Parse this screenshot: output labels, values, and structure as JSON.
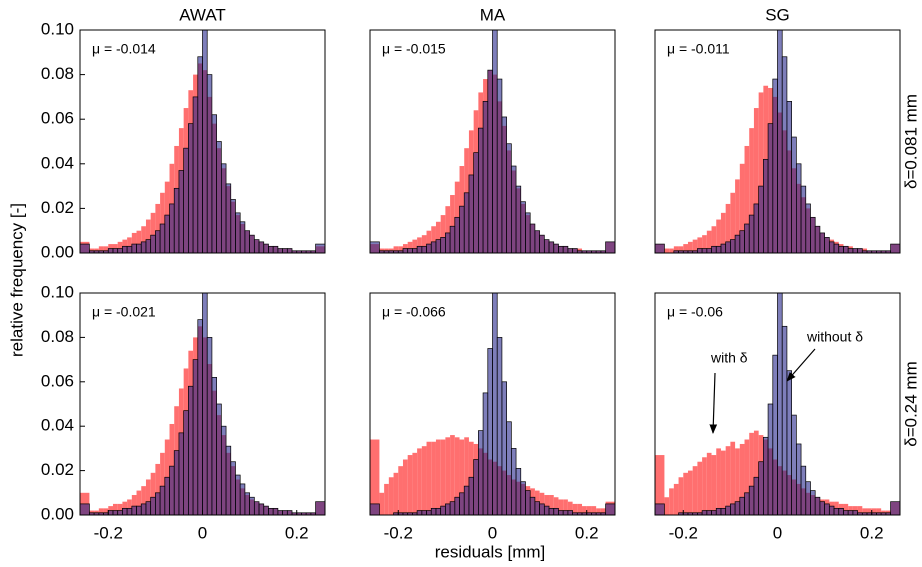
{
  "ylabel": "relative frequency [-]",
  "xlabel": "residuals [mm]",
  "chart_data": [
    {
      "type": "histogram",
      "title": "AWAT",
      "annotation": "μ = -0.014",
      "bins": [
        -0.26,
        -0.24,
        -0.23,
        -0.22,
        -0.21,
        -0.2,
        -0.19,
        -0.18,
        -0.17,
        -0.16,
        -0.15,
        -0.14,
        -0.13,
        -0.12,
        -0.11,
        -0.1,
        -0.09,
        -0.08,
        -0.07,
        -0.06,
        -0.05,
        -0.04,
        -0.03,
        -0.02,
        -0.01,
        0,
        0.01,
        0.02,
        0.03,
        0.04,
        0.05,
        0.06,
        0.07,
        0.08,
        0.09,
        0.1,
        0.11,
        0.12,
        0.13,
        0.14,
        0.15,
        0.16,
        0.17,
        0.18,
        0.19,
        0.2,
        0.21,
        0.22,
        0.23,
        0.24,
        0.26
      ],
      "series": [
        {
          "color": "#ff6f6f",
          "opacity": 1,
          "values": [
            0.005,
            0.002,
            0.002,
            0.003,
            0.003,
            0.004,
            0.004,
            0.005,
            0.006,
            0.007,
            0.009,
            0.01,
            0.012,
            0.015,
            0.018,
            0.022,
            0.027,
            0.032,
            0.04,
            0.048,
            0.056,
            0.065,
            0.073,
            0.08,
            0.085,
            0.082,
            0.07,
            0.058,
            0.047,
            0.038,
            0.03,
            0.023,
            0.017,
            0.013,
            0.01,
            0.008,
            0.006,
            0.005,
            0.004,
            0.003,
            0.003,
            0.002,
            0.002,
            0.002,
            0.001,
            0.001,
            0.001,
            0.001,
            0.001,
            0.003
          ]
        },
        {
          "color": "#28288c",
          "opacity": 0.6,
          "values": [
            0.004,
            0.001,
            0.001,
            0.001,
            0.001,
            0.002,
            0.002,
            0.002,
            0.003,
            0.003,
            0.004,
            0.004,
            0.005,
            0.006,
            0.008,
            0.01,
            0.013,
            0.017,
            0.022,
            0.029,
            0.037,
            0.047,
            0.058,
            0.07,
            0.088,
            0.105,
            0.08,
            0.062,
            0.05,
            0.04,
            0.031,
            0.024,
            0.018,
            0.014,
            0.01,
            0.008,
            0.006,
            0.005,
            0.004,
            0.003,
            0.003,
            0.002,
            0.002,
            0.002,
            0.001,
            0.001,
            0.001,
            0.001,
            0.001,
            0.004
          ]
        }
      ],
      "xlim": [
        -0.26,
        0.26
      ],
      "ylim": [
        0,
        0.1
      ],
      "yticks": [
        {
          "value": 0,
          "label": "0.00"
        },
        {
          "value": 0.02,
          "label": "0.02"
        },
        {
          "value": 0.04,
          "label": "0.04"
        },
        {
          "value": 0.06,
          "label": "0.06"
        },
        {
          "value": 0.08,
          "label": "0.08"
        },
        {
          "value": 0.1,
          "label": "0.10"
        }
      ]
    },
    {
      "type": "histogram",
      "title": "MA",
      "annotation": "μ = -0.015",
      "bins": [
        -0.26,
        -0.24,
        -0.23,
        -0.22,
        -0.21,
        -0.2,
        -0.19,
        -0.18,
        -0.17,
        -0.16,
        -0.15,
        -0.14,
        -0.13,
        -0.12,
        -0.11,
        -0.1,
        -0.09,
        -0.08,
        -0.07,
        -0.06,
        -0.05,
        -0.04,
        -0.03,
        -0.02,
        -0.01,
        0,
        0.01,
        0.02,
        0.03,
        0.04,
        0.05,
        0.06,
        0.07,
        0.08,
        0.09,
        0.1,
        0.11,
        0.12,
        0.13,
        0.14,
        0.15,
        0.16,
        0.17,
        0.18,
        0.19,
        0.2,
        0.21,
        0.22,
        0.23,
        0.24,
        0.26
      ],
      "series": [
        {
          "color": "#ff6f6f",
          "opacity": 1,
          "values": [
            0.004,
            0.002,
            0.002,
            0.002,
            0.003,
            0.003,
            0.004,
            0.005,
            0.006,
            0.007,
            0.008,
            0.01,
            0.012,
            0.014,
            0.017,
            0.021,
            0.026,
            0.032,
            0.039,
            0.047,
            0.055,
            0.064,
            0.072,
            0.078,
            0.082,
            0.08,
            0.068,
            0.057,
            0.046,
            0.037,
            0.029,
            0.022,
            0.017,
            0.013,
            0.01,
            0.008,
            0.006,
            0.005,
            0.004,
            0.003,
            0.003,
            0.002,
            0.002,
            0.002,
            0.001,
            0.001,
            0.001,
            0.001,
            0.001,
            0.005
          ]
        },
        {
          "color": "#28288c",
          "opacity": 0.6,
          "values": [
            0.005,
            0.001,
            0.001,
            0.001,
            0.001,
            0.001,
            0.002,
            0.002,
            0.002,
            0.003,
            0.003,
            0.004,
            0.005,
            0.006,
            0.007,
            0.009,
            0.012,
            0.016,
            0.021,
            0.027,
            0.035,
            0.045,
            0.056,
            0.068,
            0.082,
            0.102,
            0.078,
            0.061,
            0.049,
            0.039,
            0.03,
            0.023,
            0.018,
            0.013,
            0.01,
            0.008,
            0.006,
            0.005,
            0.004,
            0.003,
            0.003,
            0.002,
            0.002,
            0.001,
            0.001,
            0.001,
            0.001,
            0.001,
            0.001,
            0.005
          ]
        }
      ],
      "xlim": [
        -0.26,
        0.26
      ],
      "ylim": [
        0,
        0.1
      ]
    },
    {
      "type": "histogram",
      "title": "SG",
      "annotation": "μ = -0.011",
      "row_label": "δ=0.081 mm",
      "bins": [
        -0.26,
        -0.24,
        -0.23,
        -0.22,
        -0.21,
        -0.2,
        -0.19,
        -0.18,
        -0.17,
        -0.16,
        -0.15,
        -0.14,
        -0.13,
        -0.12,
        -0.11,
        -0.1,
        -0.09,
        -0.08,
        -0.07,
        -0.06,
        -0.05,
        -0.04,
        -0.03,
        -0.02,
        -0.01,
        0,
        0.01,
        0.02,
        0.03,
        0.04,
        0.05,
        0.06,
        0.07,
        0.08,
        0.09,
        0.1,
        0.11,
        0.12,
        0.13,
        0.14,
        0.15,
        0.16,
        0.17,
        0.18,
        0.19,
        0.2,
        0.21,
        0.22,
        0.23,
        0.24,
        0.26
      ],
      "series": [
        {
          "color": "#ff6f6f",
          "opacity": 1,
          "values": [
            0.004,
            0.002,
            0.002,
            0.003,
            0.003,
            0.004,
            0.005,
            0.006,
            0.007,
            0.008,
            0.01,
            0.012,
            0.015,
            0.018,
            0.022,
            0.027,
            0.033,
            0.04,
            0.048,
            0.056,
            0.065,
            0.072,
            0.075,
            0.074,
            0.07,
            0.063,
            0.055,
            0.046,
            0.038,
            0.031,
            0.025,
            0.02,
            0.016,
            0.012,
            0.009,
            0.007,
            0.006,
            0.005,
            0.004,
            0.003,
            0.003,
            0.002,
            0.002,
            0.002,
            0.001,
            0.001,
            0.001,
            0.001,
            0.001,
            0.004
          ]
        },
        {
          "color": "#28288c",
          "opacity": 0.6,
          "values": [
            0.004,
            0.0,
            0.0,
            0.001,
            0.001,
            0.001,
            0.001,
            0.001,
            0.002,
            0.002,
            0.002,
            0.003,
            0.003,
            0.004,
            0.005,
            0.006,
            0.008,
            0.01,
            0.013,
            0.017,
            0.022,
            0.03,
            0.042,
            0.058,
            0.078,
            0.105,
            0.088,
            0.068,
            0.052,
            0.04,
            0.03,
            0.022,
            0.016,
            0.012,
            0.009,
            0.007,
            0.005,
            0.004,
            0.003,
            0.003,
            0.002,
            0.002,
            0.002,
            0.001,
            0.001,
            0.001,
            0.001,
            0.001,
            0.001,
            0.004
          ]
        }
      ],
      "xlim": [
        -0.26,
        0.26
      ],
      "ylim": [
        0,
        0.1
      ]
    },
    {
      "type": "histogram",
      "annotation": "μ = -0.021",
      "bins": [
        -0.26,
        -0.24,
        -0.23,
        -0.22,
        -0.21,
        -0.2,
        -0.19,
        -0.18,
        -0.17,
        -0.16,
        -0.15,
        -0.14,
        -0.13,
        -0.12,
        -0.11,
        -0.1,
        -0.09,
        -0.08,
        -0.07,
        -0.06,
        -0.05,
        -0.04,
        -0.03,
        -0.02,
        -0.01,
        0,
        0.01,
        0.02,
        0.03,
        0.04,
        0.05,
        0.06,
        0.07,
        0.08,
        0.09,
        0.1,
        0.11,
        0.12,
        0.13,
        0.14,
        0.15,
        0.16,
        0.17,
        0.18,
        0.19,
        0.2,
        0.21,
        0.22,
        0.23,
        0.24,
        0.26
      ],
      "series": [
        {
          "color": "#ff6f6f",
          "opacity": 1,
          "values": [
            0.01,
            0.002,
            0.002,
            0.003,
            0.003,
            0.004,
            0.005,
            0.005,
            0.006,
            0.007,
            0.009,
            0.011,
            0.013,
            0.016,
            0.019,
            0.023,
            0.028,
            0.034,
            0.041,
            0.049,
            0.057,
            0.066,
            0.074,
            0.08,
            0.085,
            0.08,
            0.068,
            0.056,
            0.045,
            0.036,
            0.028,
            0.022,
            0.016,
            0.012,
            0.009,
            0.007,
            0.006,
            0.005,
            0.004,
            0.003,
            0.003,
            0.002,
            0.002,
            0.002,
            0.001,
            0.001,
            0.001,
            0.001,
            0.001,
            0.006
          ]
        },
        {
          "color": "#28288c",
          "opacity": 0.6,
          "values": [
            0.005,
            0.001,
            0.001,
            0.001,
            0.001,
            0.002,
            0.002,
            0.002,
            0.003,
            0.003,
            0.004,
            0.004,
            0.005,
            0.006,
            0.008,
            0.01,
            0.013,
            0.017,
            0.022,
            0.029,
            0.037,
            0.047,
            0.058,
            0.07,
            0.088,
            0.105,
            0.08,
            0.062,
            0.05,
            0.04,
            0.031,
            0.024,
            0.018,
            0.014,
            0.01,
            0.008,
            0.006,
            0.005,
            0.004,
            0.003,
            0.003,
            0.002,
            0.002,
            0.002,
            0.001,
            0.001,
            0.001,
            0.001,
            0.001,
            0.006
          ]
        }
      ],
      "xlim": [
        -0.26,
        0.26
      ],
      "ylim": [
        0,
        0.1
      ],
      "yticks": [
        {
          "value": 0,
          "label": "0.00"
        },
        {
          "value": 0.02,
          "label": "0.02"
        },
        {
          "value": 0.04,
          "label": "0.04"
        },
        {
          "value": 0.06,
          "label": "0.06"
        },
        {
          "value": 0.08,
          "label": "0.08"
        },
        {
          "value": 0.1,
          "label": "0.10"
        }
      ],
      "xticks": [
        -0.2,
        0,
        0.2
      ]
    },
    {
      "type": "histogram",
      "annotation": "μ = -0.066",
      "bins": [
        -0.26,
        -0.24,
        -0.23,
        -0.22,
        -0.21,
        -0.2,
        -0.19,
        -0.18,
        -0.17,
        -0.16,
        -0.15,
        -0.14,
        -0.13,
        -0.12,
        -0.11,
        -0.1,
        -0.09,
        -0.08,
        -0.07,
        -0.06,
        -0.05,
        -0.04,
        -0.03,
        -0.02,
        -0.01,
        0,
        0.01,
        0.02,
        0.03,
        0.04,
        0.05,
        0.06,
        0.07,
        0.08,
        0.09,
        0.1,
        0.11,
        0.12,
        0.13,
        0.14,
        0.15,
        0.16,
        0.17,
        0.18,
        0.19,
        0.2,
        0.21,
        0.22,
        0.23,
        0.24,
        0.26
      ],
      "series": [
        {
          "color": "#ff6f6f",
          "opacity": 1,
          "values": [
            0.034,
            0.01,
            0.014,
            0.017,
            0.019,
            0.022,
            0.025,
            0.027,
            0.028,
            0.03,
            0.031,
            0.033,
            0.033,
            0.034,
            0.034,
            0.035,
            0.036,
            0.035,
            0.034,
            0.035,
            0.033,
            0.032,
            0.03,
            0.028,
            0.025,
            0.024,
            0.022,
            0.02,
            0.018,
            0.016,
            0.015,
            0.014,
            0.013,
            0.012,
            0.011,
            0.01,
            0.009,
            0.009,
            0.008,
            0.007,
            0.007,
            0.006,
            0.005,
            0.005,
            0.004,
            0.004,
            0.004,
            0.003,
            0.003,
            0.006
          ]
        },
        {
          "color": "#28288c",
          "opacity": 0.6,
          "values": [
            0.005,
            0.0,
            0.0,
            0.0,
            0.001,
            0.001,
            0.001,
            0.001,
            0.001,
            0.002,
            0.002,
            0.002,
            0.003,
            0.003,
            0.004,
            0.005,
            0.006,
            0.008,
            0.01,
            0.013,
            0.017,
            0.025,
            0.038,
            0.055,
            0.075,
            0.1,
            0.08,
            0.06,
            0.042,
            0.03,
            0.021,
            0.015,
            0.011,
            0.008,
            0.006,
            0.005,
            0.004,
            0.003,
            0.003,
            0.002,
            0.002,
            0.002,
            0.001,
            0.001,
            0.001,
            0.001,
            0.001,
            0.001,
            0.001,
            0.005
          ]
        }
      ],
      "xlim": [
        -0.26,
        0.26
      ],
      "ylim": [
        0,
        0.1
      ],
      "xticks": [
        -0.2,
        0,
        0.2
      ]
    },
    {
      "type": "histogram",
      "annotation": "μ = -0.06",
      "row_label": "δ=0.24 mm",
      "annotations": [
        "with δ",
        "without δ"
      ],
      "bins": [
        -0.26,
        -0.24,
        -0.23,
        -0.22,
        -0.21,
        -0.2,
        -0.19,
        -0.18,
        -0.17,
        -0.16,
        -0.15,
        -0.14,
        -0.13,
        -0.12,
        -0.11,
        -0.1,
        -0.09,
        -0.08,
        -0.07,
        -0.06,
        -0.05,
        -0.04,
        -0.03,
        -0.02,
        -0.01,
        0,
        0.01,
        0.02,
        0.03,
        0.04,
        0.05,
        0.06,
        0.07,
        0.08,
        0.09,
        0.1,
        0.11,
        0.12,
        0.13,
        0.14,
        0.15,
        0.16,
        0.17,
        0.18,
        0.19,
        0.2,
        0.21,
        0.22,
        0.23,
        0.24,
        0.26
      ],
      "series": [
        {
          "color": "#ff6f6f",
          "opacity": 1,
          "values": [
            0.027,
            0.008,
            0.012,
            0.014,
            0.017,
            0.019,
            0.02,
            0.022,
            0.024,
            0.026,
            0.028,
            0.027,
            0.03,
            0.029,
            0.031,
            0.033,
            0.03,
            0.032,
            0.034,
            0.037,
            0.038,
            0.036,
            0.034,
            0.03,
            0.025,
            0.022,
            0.02,
            0.018,
            0.016,
            0.014,
            0.012,
            0.01,
            0.009,
            0.008,
            0.007,
            0.007,
            0.006,
            0.006,
            0.005,
            0.005,
            0.004,
            0.004,
            0.004,
            0.003,
            0.003,
            0.003,
            0.003,
            0.002,
            0.002,
            0.006
          ]
        },
        {
          "color": "#28288c",
          "opacity": 0.6,
          "values": [
            0.005,
            0.0,
            0.0,
            0.0,
            0.001,
            0.001,
            0.001,
            0.001,
            0.001,
            0.002,
            0.002,
            0.002,
            0.003,
            0.003,
            0.004,
            0.005,
            0.006,
            0.008,
            0.01,
            0.013,
            0.017,
            0.024,
            0.035,
            0.05,
            0.072,
            0.105,
            0.085,
            0.065,
            0.045,
            0.032,
            0.022,
            0.015,
            0.011,
            0.008,
            0.006,
            0.005,
            0.004,
            0.003,
            0.003,
            0.002,
            0.002,
            0.002,
            0.001,
            0.001,
            0.001,
            0.001,
            0.001,
            0.001,
            0.001,
            0.006
          ]
        }
      ],
      "xlim": [
        -0.26,
        0.26
      ],
      "ylim": [
        0,
        0.1
      ],
      "xticks": [
        -0.2,
        0,
        0.2
      ]
    }
  ]
}
